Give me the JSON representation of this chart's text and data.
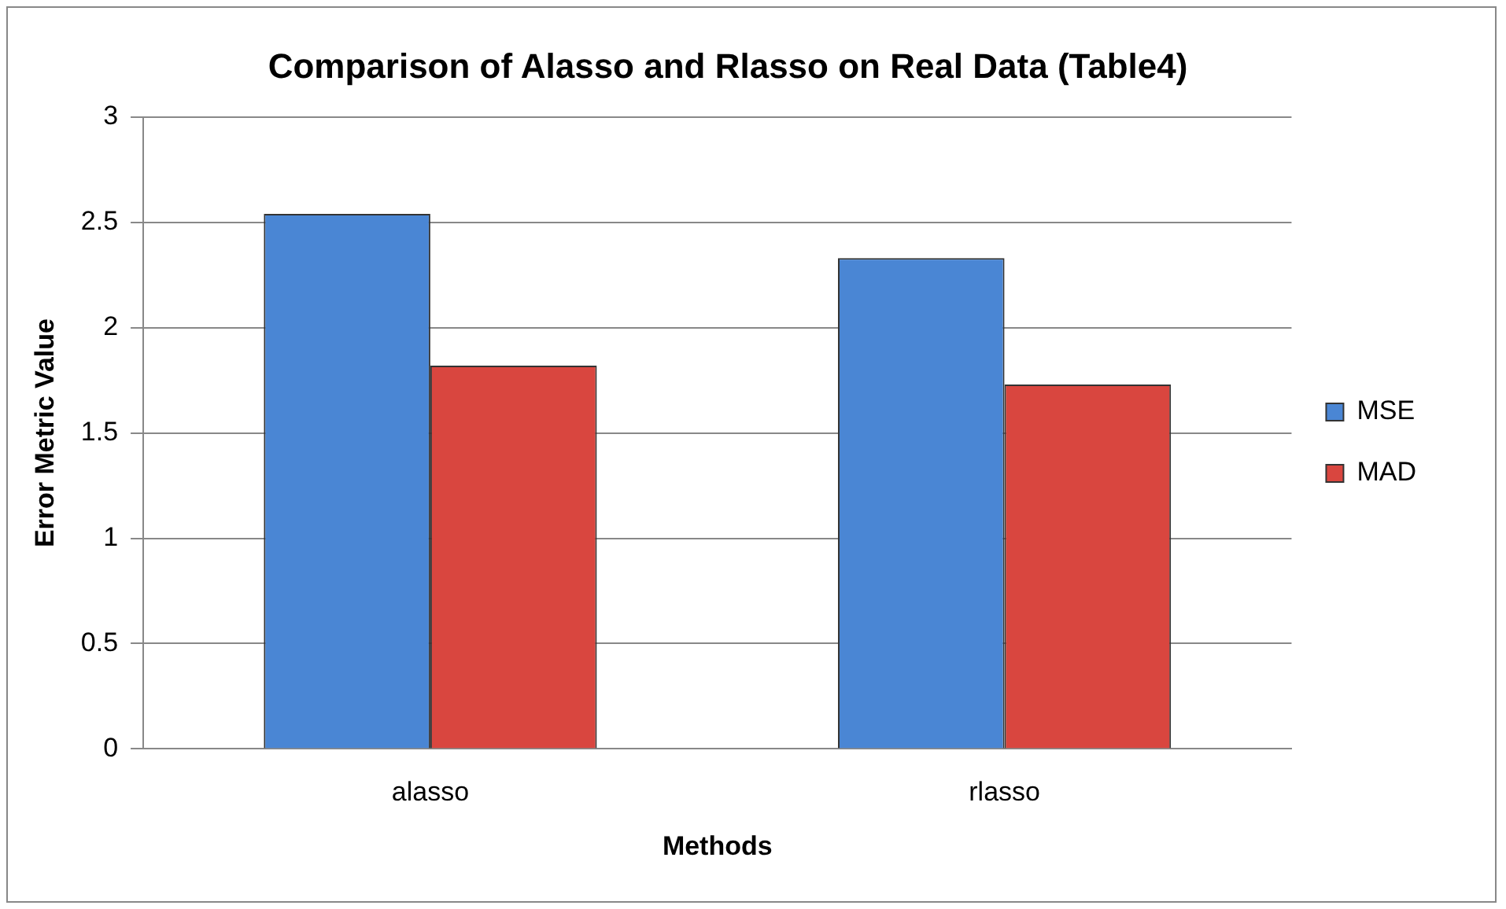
{
  "chart_data": {
    "type": "bar",
    "title": "Comparison of Alasso and Rlasso on Real Data (Table4)",
    "xlabel": "Methods",
    "ylabel": "Error Metric Value",
    "categories": [
      "alasso",
      "rlasso"
    ],
    "series": [
      {
        "name": "MSE",
        "color": "#4a86d4",
        "values": [
          2.54,
          2.33
        ]
      },
      {
        "name": "MAD",
        "color": "#d9463f",
        "values": [
          1.82,
          1.73
        ]
      }
    ],
    "ylim": [
      0,
      3
    ],
    "yticks": [
      0,
      0.5,
      1,
      1.5,
      2,
      2.5,
      3
    ],
    "grid": "y",
    "legend": "right"
  }
}
